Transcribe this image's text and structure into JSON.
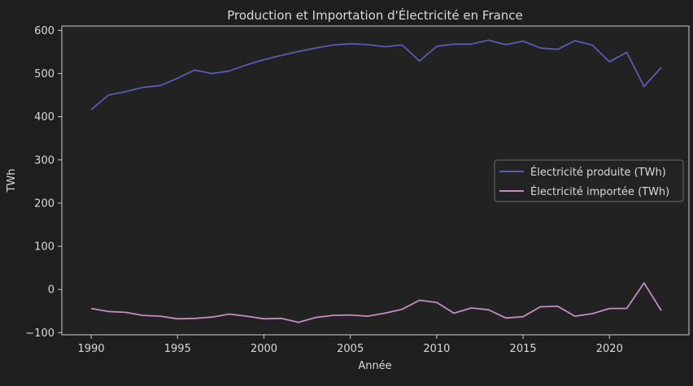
{
  "chart_data": {
    "type": "line",
    "title": "Production et Importation d'Électricité en France",
    "xlabel": "Année",
    "ylabel": "TWh",
    "xlim": [
      1988.3,
      1991.4
    ],
    "ylim": [
      -105,
      610
    ],
    "xticks": [
      1990,
      1995,
      2000,
      2005,
      2010,
      2015,
      2020
    ],
    "yticks": [
      -100,
      0,
      100,
      200,
      300,
      400,
      500,
      600
    ],
    "grid": false,
    "legend_position": "center-right",
    "x": [
      1990,
      1991,
      1992,
      1993,
      1994,
      1995,
      1996,
      1997,
      1998,
      1999,
      2000,
      2001,
      2002,
      2003,
      2004,
      2005,
      2006,
      2007,
      2008,
      2009,
      2010,
      2011,
      2012,
      2013,
      2014,
      2015,
      2016,
      2017,
      2018,
      2019,
      2020,
      2021,
      2022,
      2023
    ],
    "series": [
      {
        "name": "Électricité produite (TWh)",
        "color": "#5b5bb5",
        "values": [
          416,
          450,
          458,
          468,
          472,
          489,
          508,
          500,
          506,
          520,
          532,
          542,
          551,
          559,
          566,
          569,
          567,
          562,
          566,
          529,
          563,
          568,
          568,
          577,
          567,
          575,
          559,
          556,
          576,
          566,
          527,
          549,
          470,
          514
        ]
      },
      {
        "name": "Électricité importée (TWh)",
        "color": "#c48dc4",
        "values": [
          -44,
          -51,
          -53,
          -60,
          -62,
          -68,
          -67,
          -64,
          -57,
          -62,
          -68,
          -67,
          -76,
          -65,
          -60,
          -59,
          -62,
          -55,
          -46,
          -25,
          -30,
          -55,
          -43,
          -47,
          -66,
          -63,
          -40,
          -39,
          -62,
          -56,
          -44,
          -44,
          15,
          -49
        ]
      }
    ]
  },
  "colors": {
    "background": "#1e1e1e",
    "axes_background": "#222222",
    "spine": "#cccccc",
    "text": "#d9d9d9",
    "legend_background": "#232323",
    "legend_border": "#6a6a6a"
  }
}
